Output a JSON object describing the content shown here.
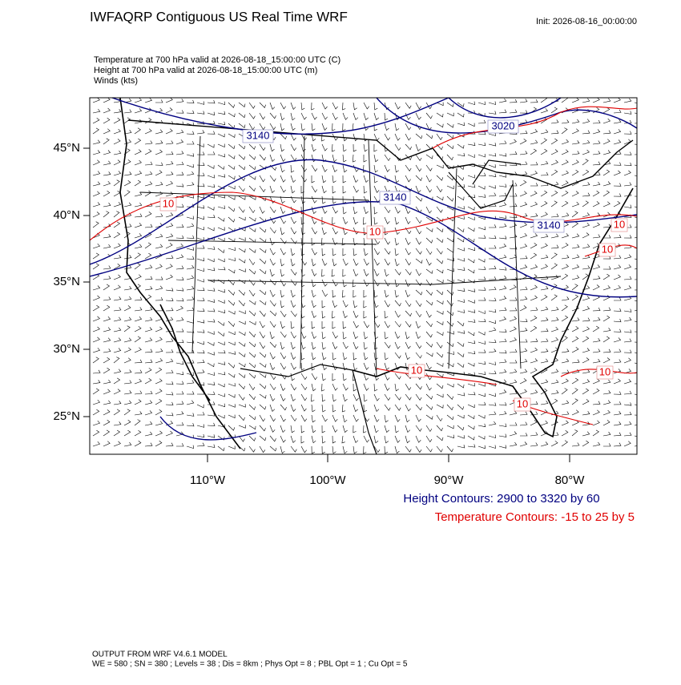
{
  "header": {
    "title": "IWFAQRP Contiguous US Real Time WRF",
    "init": "Init: 2026-08-16_00:00:00"
  },
  "fields": [
    "Temperature at 700 hPa valid at 2026-08-18_15:00:00 UTC   (C)",
    "Height at 700 hPa valid at 2026-08-18_15:00:00 UTC   (m)",
    "Winds   (kts)"
  ],
  "map": {
    "lat_labels": [
      "45°N",
      "40°N",
      "35°N",
      "30°N",
      "25°N"
    ],
    "lon_labels": [
      "110°W",
      "100°W",
      "90°W",
      "80°W"
    ],
    "height_contour_labels": [
      3140,
      3020,
      3140,
      3140
    ],
    "temperature_contour_labels": [
      10,
      10,
      10,
      10,
      10,
      10,
      10
    ]
  },
  "legend": {
    "height": "Height Contours: 2900 to 3320 by 60",
    "temperature": "Temperature Contours: -15 to 25 by 5"
  },
  "footer": [
    "OUTPUT FROM WRF V4.6.1 MODEL",
    "WE = 580 ; SN = 380 ; Levels = 38 ; Dis = 8km ; Phys Opt = 8 ; PBL Opt = 1 ; Cu Opt = 5"
  ]
}
